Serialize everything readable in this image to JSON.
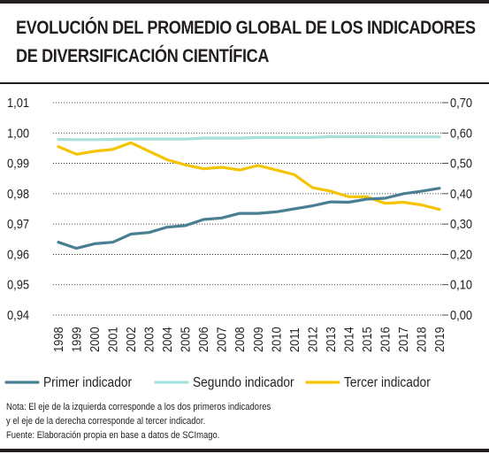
{
  "title_line1": "EVOLUCIÓN DEL PROMEDIO GLOBAL DE LOS INDICADORES",
  "title_line2": "DE DIVERSIFICACIÓN CIENTÍFICA",
  "note_line1": "Nota: El eje de la izquierda corresponde a los dos primeros indicadores",
  "note_line2": "y el eje de la derecha corresponde al tercer indicador.",
  "note_line3": "Fuente: Elaboración propia en base a datos de SCImago.",
  "colors": {
    "primer": "#4a7f93",
    "segundo": "#a8e0dc",
    "tercer": "#f5c400",
    "grid": "#231f20"
  },
  "chart_data": {
    "type": "line",
    "x": [
      "1998",
      "1999",
      "2000",
      "2001",
      "2002",
      "2003",
      "2004",
      "2005",
      "2006",
      "2007",
      "2008",
      "2009",
      "2010",
      "2011",
      "2012",
      "2013",
      "2014",
      "2015",
      "2016",
      "2017",
      "2018",
      "2019"
    ],
    "left_axis": {
      "ylim": [
        0.94,
        1.01
      ],
      "ticks": [
        "0,94",
        "0,95",
        "0,96",
        "0,97",
        "0,98",
        "0,99",
        "1,00",
        "1,01"
      ]
    },
    "right_axis": {
      "ylim": [
        0.0,
        0.7
      ],
      "ticks": [
        "0,00",
        "0,10",
        "0,20",
        "0,30",
        "0,40",
        "0,50",
        "0,60",
        "0,70"
      ]
    },
    "grid": "horizontal dashed",
    "legend_position": "bottom",
    "series": [
      {
        "name": "Primer indicador",
        "axis": "left",
        "color": "#4a7f93",
        "values": [
          0.964,
          0.962,
          0.9635,
          0.964,
          0.9667,
          0.9672,
          0.969,
          0.9695,
          0.9715,
          0.972,
          0.9735,
          0.9735,
          0.974,
          0.975,
          0.976,
          0.9773,
          0.9772,
          0.9782,
          0.9785,
          0.98,
          0.9808,
          0.9818
        ]
      },
      {
        "name": "Segundo indicador",
        "axis": "left",
        "color": "#a8e0dc",
        "values": [
          0.9979,
          0.9978,
          0.9978,
          0.9979,
          0.998,
          0.998,
          0.998,
          0.998,
          0.9983,
          0.9983,
          0.9983,
          0.9985,
          0.9985,
          0.9985,
          0.9985,
          0.9988,
          0.9988,
          0.9988,
          0.9987,
          0.9987,
          0.9987,
          0.9987
        ]
      },
      {
        "name": "Tercer indicador",
        "axis": "right",
        "color": "#f5c400",
        "values": [
          0.555,
          0.53,
          0.54,
          0.546,
          0.568,
          0.54,
          0.512,
          0.495,
          0.482,
          0.487,
          0.478,
          0.493,
          0.478,
          0.463,
          0.42,
          0.408,
          0.39,
          0.39,
          0.368,
          0.372,
          0.363,
          0.348
        ]
      }
    ]
  }
}
